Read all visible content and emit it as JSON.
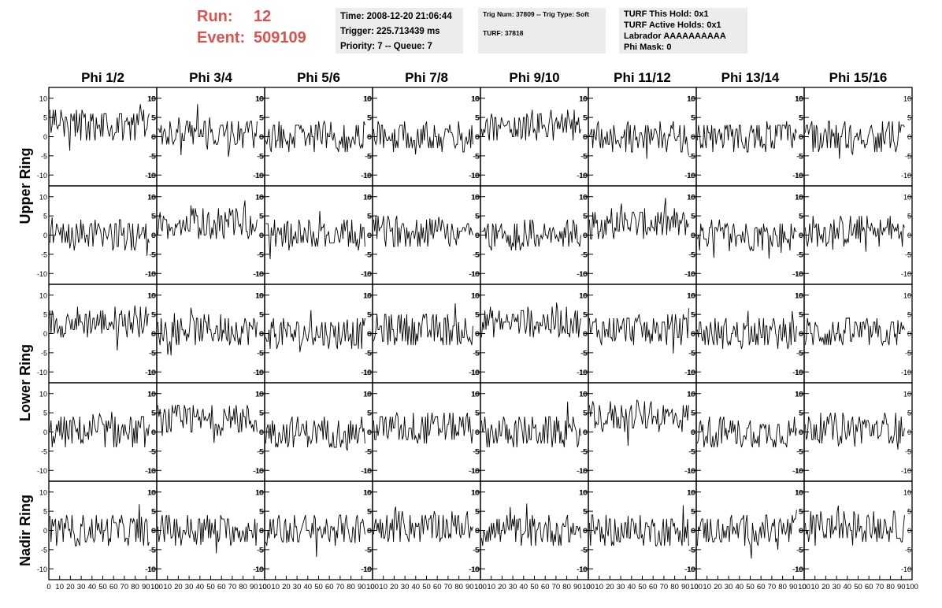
{
  "header": {
    "run_label": "Run:",
    "run_value": "12",
    "event_label": "Event:",
    "event_value": "509109",
    "time_line": "Time: 2008-12-20 21:06:44",
    "trigger_line": "Trigger: 225.713439 ms",
    "priority_line": "Priority: 7 -- Queue: 7",
    "trig_line": "Trig Num: 37809 -- Trig Type: Soft",
    "turf_line": "TURF: 37818",
    "turf_this_hold": "TURF This Hold: 0x1",
    "turf_active_holds": "TURF Active Holds: 0x1",
    "labrador": "Labrador AAAAAAAAAA",
    "phi_mask": "Phi Mask: 0"
  },
  "chart_data": {
    "type": "line",
    "columns": [
      "Phi 1/2",
      "Phi 3/4",
      "Phi 5/6",
      "Phi 7/8",
      "Phi 9/10",
      "Phi 11/12",
      "Phi 13/14",
      "Phi 15/16"
    ],
    "rows": [
      "Upper Ring",
      "Upper Ring",
      "Lower Ring",
      "Lower Ring",
      "Nadir Ring"
    ],
    "row_labels": [
      "Upper Ring",
      "Lower Ring",
      "Nadir Ring"
    ],
    "xlim": [
      0,
      100
    ],
    "ylim": [
      -12,
      12
    ],
    "x_ticks": [
      0,
      10,
      20,
      30,
      40,
      50,
      60,
      70,
      80,
      90,
      100
    ],
    "y_ticks": [
      -10,
      -5,
      0,
      5,
      10
    ],
    "samples": 90,
    "baselines": [
      [
        3,
        1,
        0,
        0,
        3,
        0,
        0,
        0
      ],
      [
        0,
        3,
        0,
        1,
        0,
        3,
        0,
        1
      ],
      [
        3,
        1,
        0,
        1,
        3,
        1,
        0,
        0
      ],
      [
        0,
        3,
        0,
        1,
        0,
        4,
        0,
        1
      ],
      [
        0,
        0,
        0,
        1,
        0,
        0,
        0,
        1
      ]
    ]
  }
}
